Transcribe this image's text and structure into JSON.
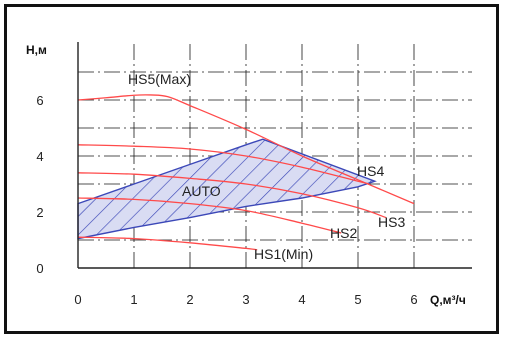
{
  "chart_data": {
    "type": "line",
    "title": "",
    "xlabel": "Q,м³/ч",
    "ylabel": "Н,м",
    "xlim": [
      0,
      6
    ],
    "ylim": [
      0,
      7
    ],
    "x_ticks": [
      "0",
      "1",
      "2",
      "3",
      "4",
      "5",
      "6"
    ],
    "y_ticks": [
      "0",
      "2",
      "4",
      "6"
    ],
    "grid": true,
    "colors": {
      "grid": "#1a1a1a",
      "axis": "#222222",
      "curve": "#ff4a4a",
      "hatch_fill": "#d9dcf3",
      "hatch_line": "#3c48b8",
      "frame": "#111111"
    },
    "series": [
      {
        "name": "HS5(Max)",
        "x": [
          0,
          0.5,
          1.0,
          1.3,
          1.6,
          2.0,
          3.0,
          4.0,
          5.0,
          6.0
        ],
        "y": [
          6.0,
          6.08,
          6.17,
          6.18,
          6.12,
          5.8,
          4.95,
          4.0,
          3.15,
          2.3
        ]
      },
      {
        "name": "HS4",
        "x": [
          0,
          1,
          2,
          3,
          4,
          5,
          5.2
        ],
        "y": [
          4.4,
          4.35,
          4.25,
          4.0,
          3.6,
          3.1,
          3.0
        ]
      },
      {
        "name": "HS3",
        "x": [
          0,
          1,
          2,
          3,
          4,
          5,
          5.5
        ],
        "y": [
          3.4,
          3.35,
          3.2,
          3.0,
          2.65,
          2.15,
          1.8
        ]
      },
      {
        "name": "HS2",
        "x": [
          0,
          1,
          2,
          3,
          4,
          4.7
        ],
        "y": [
          2.5,
          2.45,
          2.3,
          2.05,
          1.6,
          1.25
        ]
      },
      {
        "name": "HS1(Min)",
        "x": [
          0,
          1,
          2,
          3,
          3.2
        ],
        "y": [
          1.1,
          1.05,
          0.9,
          0.7,
          0.65
        ]
      }
    ],
    "auto_region": {
      "name": "AUTO",
      "upper": {
        "x": [
          0,
          1,
          2,
          3,
          3.3
        ],
        "y": [
          2.3,
          3.0,
          3.7,
          4.4,
          4.6
        ]
      },
      "lower": {
        "x": [
          0,
          1,
          2,
          3,
          4,
          5,
          5.3
        ],
        "y": [
          1.05,
          1.45,
          1.8,
          2.2,
          2.5,
          2.9,
          3.1
        ]
      }
    }
  }
}
